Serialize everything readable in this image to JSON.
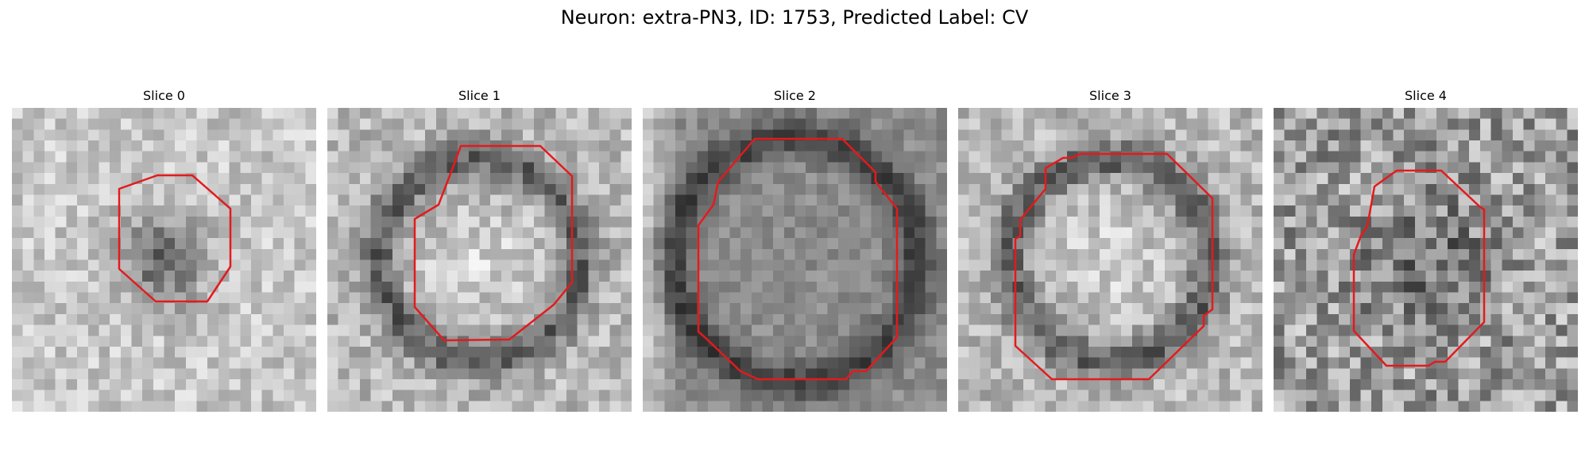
{
  "figure": {
    "title": "Neuron: extra-PN3, ID: 1753, Predicted Label: CV"
  },
  "panels": [
    {
      "title": "Slice 0",
      "pattern": "dark-center"
    },
    {
      "title": "Slice 1",
      "pattern": "bright-center-dark-ring"
    },
    {
      "title": "Slice 2",
      "pattern": "gray-center-dark-sides"
    },
    {
      "title": "Slice 3",
      "pattern": "bright-center-dark-ring"
    },
    {
      "title": "Slice 4",
      "pattern": "noisy-dark-center"
    }
  ],
  "colors": {
    "contour": "#e41a1c",
    "background": "#ffffff"
  }
}
